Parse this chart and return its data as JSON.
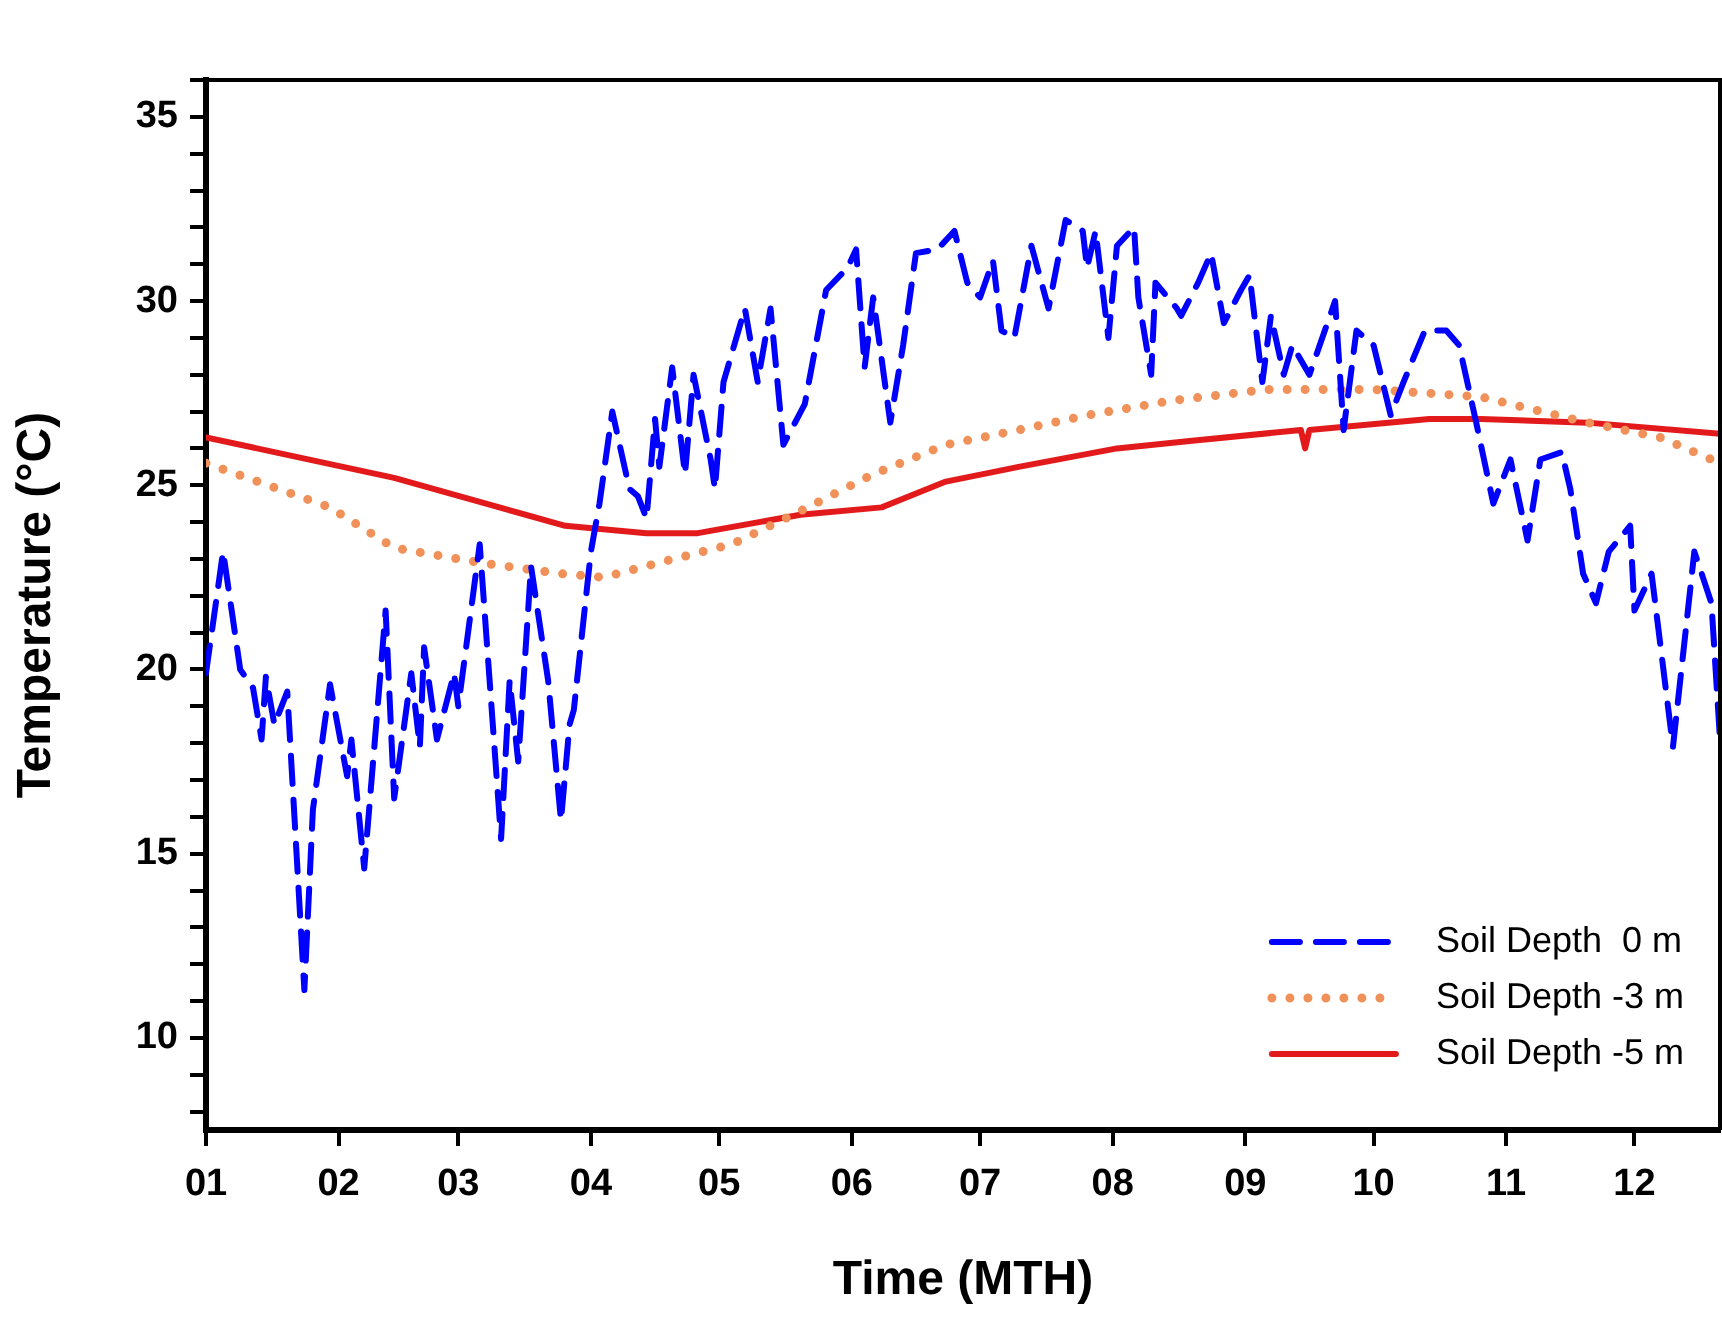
{
  "chart_data": {
    "type": "line",
    "xlabel": "Time (MTH)",
    "ylabel": "Temperature (°C)",
    "xlim": [
      "--01-01",
      "--12-21"
    ],
    "xticks": [
      {
        "value": "--01-01",
        "label": "01"
      },
      {
        "value": "--02-01",
        "label": "02"
      },
      {
        "value": "--03-01",
        "label": "03"
      },
      {
        "value": "--04-01",
        "label": "04"
      },
      {
        "value": "--05-01",
        "label": "05"
      },
      {
        "value": "--06-01",
        "label": "06"
      },
      {
        "value": "--07-01",
        "label": "07"
      },
      {
        "value": "--08-01",
        "label": "08"
      },
      {
        "value": "--09-01",
        "label": "09"
      },
      {
        "value": "--10-01",
        "label": "10"
      },
      {
        "value": "--11-01",
        "label": "11"
      },
      {
        "value": "--12-01",
        "label": "12"
      }
    ],
    "ylim": [
      7.5,
      36
    ],
    "yticks": [
      {
        "value": 8,
        "label": null
      },
      {
        "value": 9,
        "label": null
      },
      10,
      {
        "value": 11,
        "label": null
      },
      {
        "value": 12,
        "label": null
      },
      {
        "value": 13,
        "label": null
      },
      {
        "value": 14,
        "label": null
      },
      15,
      {
        "value": 16,
        "label": null
      },
      {
        "value": 17,
        "label": null
      },
      {
        "value": 18,
        "label": null
      },
      {
        "value": 19,
        "label": null
      },
      20,
      {
        "value": 21,
        "label": null
      },
      {
        "value": 22,
        "label": null
      },
      {
        "value": 23,
        "label": null
      },
      {
        "value": 24,
        "label": null
      },
      25,
      {
        "value": 26,
        "label": null
      },
      {
        "value": 27,
        "label": null
      },
      {
        "value": 28,
        "label": null
      },
      {
        "value": 29,
        "label": null
      },
      30,
      {
        "value": 31,
        "label": null
      },
      {
        "value": 32,
        "label": null
      },
      {
        "value": 33,
        "label": null
      },
      {
        "value": 34,
        "label": null
      },
      35,
      {
        "value": 36,
        "label": null
      }
    ],
    "legend": "bottom right",
    "marker": "none",
    "series": [
      {
        "name": "Soil Depth  0 m",
        "color": "#0000ff",
        "line_style": "dashed",
        "x": [
          "--01-01",
          "--01-05",
          "--01-07",
          "--01-09",
          "--01-12",
          "--01-14",
          "--01-15",
          "--01-17",
          "--01-20",
          "--01-24",
          "--01-26",
          "--01-30",
          "--02-03",
          "--02-04",
          "--02-07",
          "--02-12",
          "--02-14",
          "--02-18",
          "--02-20",
          "--02-21",
          "--02-24",
          "--02-28",
          "--03-01",
          "--03-06",
          "--03-11",
          "--03-13",
          "--03-15",
          "--03-18",
          "--03-22",
          "--03-25",
          "--03-27",
          "--03-28",
          "--04-01",
          "--04-03",
          "--04-06",
          "--04-10",
          "--04-12",
          "--04-14",
          "--04-16",
          "--04-17",
          "--04-20",
          "--04-23",
          "--04-25",
          "--04-29",
          "--04-30",
          "--05-02",
          "--05-05",
          "--05-07",
          "--05-10",
          "--05-13",
          "--05-16",
          "--05-21",
          "--05-26",
          "--05-31",
          "--06-02",
          "--06-04",
          "--06-06",
          "--06-10",
          "--06-13",
          "--06-16",
          "--06-21",
          "--06-25",
          "--06-28",
          "--07-01",
          "--07-04",
          "--07-06",
          "--07-09",
          "--07-13",
          "--07-17",
          "--07-21",
          "--07-25",
          "--07-26",
          "--07-28",
          "--07-31",
          "--08-02",
          "--08-06",
          "--08-07",
          "--08-10",
          "--08-11",
          "--08-16",
          "--08-17",
          "--08-21",
          "--08-24",
          "--08-27",
          "--08-31",
          "--09-02",
          "--09-05",
          "--09-07",
          "--09-10",
          "--09-12",
          "--09-16",
          "--09-22",
          "--09-24",
          "--09-27",
          "--10-01",
          "--10-05",
          "--10-08",
          "--10-13",
          "--10-18",
          "--10-21",
          "--10-25",
          "--10-29",
          "--11-02",
          "--11-06",
          "--11-09",
          "--11-14",
          "--11-16",
          "--11-19",
          "--11-22",
          "--11-25",
          "--11-30",
          "--12-01",
          "--12-05",
          "--12-10",
          "--12-15",
          "--12-19",
          "--12-21"
        ],
        "values": [
          19.9,
          23.2,
          21.6,
          20.0,
          19.5,
          18.1,
          19.8,
          18.5,
          19.4,
          11.3,
          16.2,
          19.6,
          17.1,
          18.1,
          14.6,
          21.6,
          16.5,
          19.9,
          17.9,
          20.6,
          18.1,
          19.9,
          19.0,
          23.4,
          15.4,
          19.7,
          17.5,
          22.8,
          19.7,
          15.9,
          18.5,
          18.9,
          23.2,
          24.5,
          27.0,
          24.9,
          24.7,
          24.1,
          26.8,
          25.5,
          28.2,
          25.3,
          28.0,
          25.7,
          24.9,
          27.8,
          29.0,
          29.8,
          27.8,
          29.8,
          26.1,
          27.2,
          30.3,
          30.9,
          31.4,
          28.2,
          30.1,
          26.7,
          28.8,
          31.3,
          31.4,
          31.9,
          30.5,
          30.1,
          31.1,
          29.2,
          29.0,
          31.5,
          29.8,
          32.2,
          31.9,
          30.9,
          31.9,
          29.0,
          31.5,
          32.0,
          30.1,
          28.0,
          30.5,
          29.8,
          29.6,
          30.5,
          31.3,
          29.4,
          30.3,
          30.7,
          27.8,
          29.6,
          28.0,
          28.8,
          28.0,
          30.0,
          26.5,
          29.2,
          28.8,
          26.9,
          27.8,
          29.2,
          29.2,
          28.8,
          26.7,
          24.5,
          25.7,
          23.5,
          25.7,
          25.9,
          24.9,
          22.6,
          21.8,
          23.2,
          23.9,
          21.6,
          22.6,
          17.9,
          23.2,
          21.8,
          18.1
        ]
      },
      {
        "name": "Soil Depth -3 m",
        "color": "#f0915a",
        "line_style": "dotted",
        "x": [
          "--01-01",
          "--01-30",
          "--02-14",
          "--03-06",
          "--03-25",
          "--04-04",
          "--04-17",
          "--05-04",
          "--05-20",
          "--06-06",
          "--06-23",
          "--07-10",
          "--07-26",
          "--08-15",
          "--09-06",
          "--10-01",
          "--10-26",
          "--11-20",
          "--12-07",
          "--12-21"
        ],
        "values": [
          25.6,
          24.4,
          23.3,
          22.9,
          22.6,
          22.5,
          22.9,
          23.4,
          24.3,
          25.3,
          26.1,
          26.5,
          26.9,
          27.3,
          27.6,
          27.6,
          27.4,
          26.7,
          26.3,
          25.6
        ]
      },
      {
        "name": "Soil Depth -5 m",
        "color": "#e31a1c",
        "line_style": "solid",
        "x": [
          "--01-01",
          "--02-14",
          "--03-26",
          "--04-14",
          "--04-26",
          "--05-20",
          "--06-08",
          "--06-23",
          "--07-10",
          "--08-02",
          "--08-19",
          "--09-14",
          "--09-15",
          "--09-16",
          "--10-14",
          "--10-26",
          "--11-20",
          "--12-21"
        ],
        "values": [
          26.3,
          25.2,
          23.9,
          23.7,
          23.7,
          24.2,
          24.4,
          25.1,
          25.5,
          26.0,
          26.2,
          26.5,
          26.0,
          26.5,
          26.8,
          26.8,
          26.7,
          26.4
        ]
      }
    ]
  }
}
